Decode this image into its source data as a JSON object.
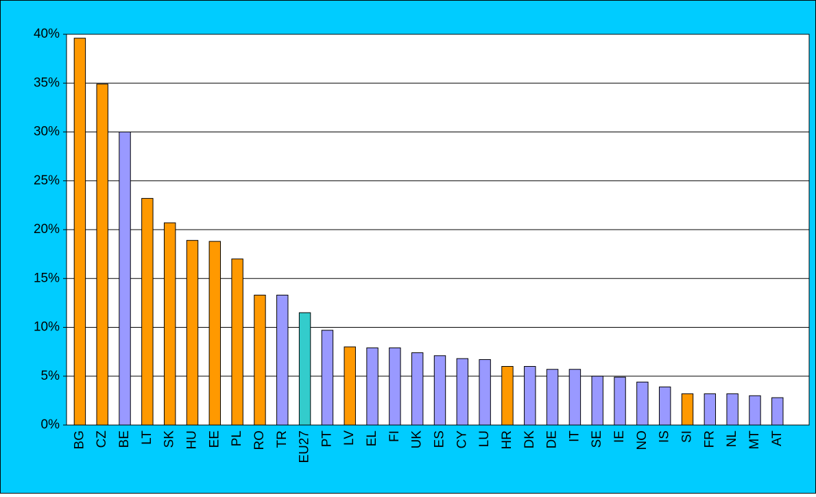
{
  "chart_data": {
    "type": "bar",
    "categories": [
      "BG",
      "CZ",
      "BE",
      "LT",
      "SK",
      "HU",
      "EE",
      "PL",
      "RO",
      "TR",
      "EU27",
      "PT",
      "LV",
      "EL",
      "FI",
      "UK",
      "ES",
      "CY",
      "LU",
      "HR",
      "DK",
      "DE",
      "IT",
      "SE",
      "IE",
      "NO",
      "IS",
      "SI",
      "FR",
      "NL",
      "MT",
      "AT"
    ],
    "values": [
      39.6,
      34.9,
      30.0,
      23.2,
      20.7,
      18.9,
      18.8,
      17.0,
      13.3,
      13.3,
      11.5,
      9.7,
      8.0,
      7.9,
      7.9,
      7.4,
      7.1,
      6.8,
      6.7,
      6.0,
      6.0,
      5.7,
      5.7,
      5.0,
      4.9,
      4.4,
      3.9,
      3.2,
      3.2,
      3.2,
      3.0,
      2.8
    ],
    "colors": [
      "#ff9900",
      "#ff9900",
      "#9999ff",
      "#ff9900",
      "#ff9900",
      "#ff9900",
      "#ff9900",
      "#ff9900",
      "#ff9900",
      "#9999ff",
      "#33cccc",
      "#9999ff",
      "#ff9900",
      "#9999ff",
      "#9999ff",
      "#9999ff",
      "#9999ff",
      "#9999ff",
      "#9999ff",
      "#ff9900",
      "#9999ff",
      "#9999ff",
      "#9999ff",
      "#9999ff",
      "#9999ff",
      "#9999ff",
      "#9999ff",
      "#ff9900",
      "#9999ff",
      "#9999ff",
      "#9999ff",
      "#9999ff"
    ],
    "ylim": [
      0,
      40
    ],
    "yticks": [
      {
        "value": 0,
        "label": "0%"
      },
      {
        "value": 5,
        "label": "5%"
      },
      {
        "value": 10,
        "label": "10%"
      },
      {
        "value": 15,
        "label": "15%"
      },
      {
        "value": 20,
        "label": "20%"
      },
      {
        "value": 25,
        "label": "25%"
      },
      {
        "value": 30,
        "label": "30%"
      },
      {
        "value": 35,
        "label": "35%"
      },
      {
        "value": 40,
        "label": "40%"
      }
    ],
    "grid": true
  }
}
